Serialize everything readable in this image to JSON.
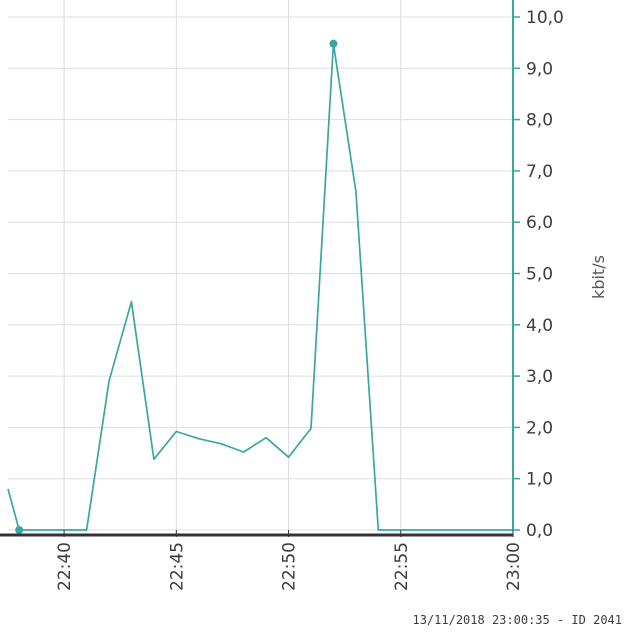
{
  "chart_data": {
    "type": "line",
    "x_type": "time",
    "xlim": [
      "22:37:30",
      "23:00:00"
    ],
    "ylim": [
      0,
      10
    ],
    "y_axis_side": "right",
    "ylabel": "kbit/s",
    "x_ticks": [
      "22:40",
      "22:45",
      "22:50",
      "22:55",
      "23:00"
    ],
    "y_ticks": [
      "0,0",
      "1,0",
      "2,0",
      "3,0",
      "4,0",
      "5,0",
      "6,0",
      "7,0",
      "8,0",
      "9,0",
      "10,0"
    ],
    "grid": true,
    "series": [
      {
        "color": "#3aa6a0",
        "points": [
          {
            "x": "22:37:30",
            "y": 0.8
          },
          {
            "x": "22:38",
            "y": 0.0
          },
          {
            "x": "22:39",
            "y": 0.0
          },
          {
            "x": "22:40",
            "y": 0.0
          },
          {
            "x": "22:41",
            "y": 0.0
          },
          {
            "x": "22:42",
            "y": 2.9
          },
          {
            "x": "22:43",
            "y": 4.45
          },
          {
            "x": "22:44",
            "y": 1.38
          },
          {
            "x": "22:45",
            "y": 1.92
          },
          {
            "x": "22:46",
            "y": 1.78
          },
          {
            "x": "22:47",
            "y": 1.68
          },
          {
            "x": "22:48",
            "y": 1.52
          },
          {
            "x": "22:49",
            "y": 1.8
          },
          {
            "x": "22:50",
            "y": 1.42
          },
          {
            "x": "22:51",
            "y": 1.98
          },
          {
            "x": "22:52",
            "y": 9.48
          },
          {
            "x": "22:53",
            "y": 6.6
          },
          {
            "x": "22:54",
            "y": 0.0
          },
          {
            "x": "22:55",
            "y": 0.0
          },
          {
            "x": "22:56",
            "y": 0.0
          },
          {
            "x": "22:57",
            "y": 0.0
          },
          {
            "x": "22:58",
            "y": 0.0
          },
          {
            "x": "22:59",
            "y": 0.0
          },
          {
            "x": "23:00",
            "y": 0.0
          }
        ],
        "markers": [
          {
            "x": "22:38",
            "y": 0.0
          },
          {
            "x": "22:52",
            "y": 9.48
          }
        ]
      }
    ]
  },
  "footer_text": "13/11/2018 23:00:35 - ID 2041",
  "colors": {
    "series": "#3aa6a0",
    "axis": "#3aa6a0",
    "grid": "#dddddd",
    "baseline": "#333333"
  }
}
